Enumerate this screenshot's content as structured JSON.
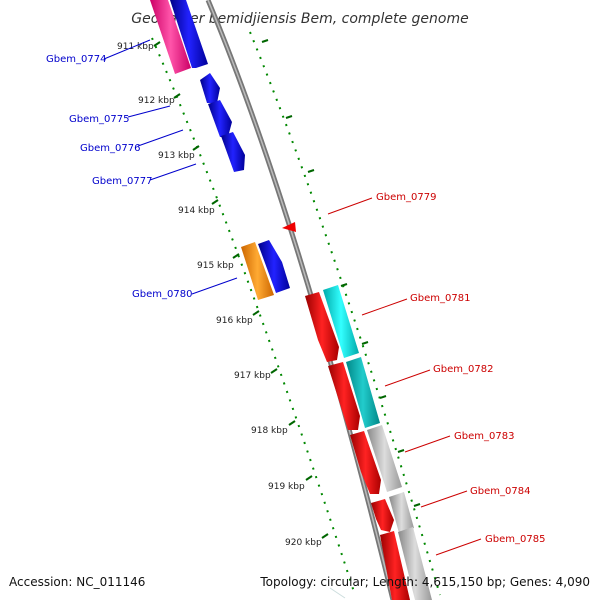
{
  "title": "Geobacter bemidjiensis Bem, complete genome",
  "footer": {
    "accession": "Accession: NC_011146",
    "topology": "Topology: circular; Length: 4,615,150 bp; Genes: 4,090"
  },
  "ticks": [
    "911 kbp",
    "912 kbp",
    "913 kbp",
    "914 kbp",
    "915 kbp",
    "916 kbp",
    "917 kbp",
    "918 kbp",
    "919 kbp",
    "920 kbp"
  ],
  "genes": [
    {
      "name": "Gbem_0774",
      "strand": "forward",
      "color": "#0000cc"
    },
    {
      "name": "Gbem_0775",
      "strand": "forward",
      "color": "#0000cc"
    },
    {
      "name": "Gbem_0776",
      "strand": "forward",
      "color": "#0000cc"
    },
    {
      "name": "Gbem_0777",
      "strand": "forward",
      "color": "#0000cc"
    },
    {
      "name": "Gbem_0779",
      "strand": "reverse",
      "color": "#cc0000"
    },
    {
      "name": "Gbem_0780",
      "strand": "forward",
      "color": "#0000cc"
    },
    {
      "name": "Gbem_0781",
      "strand": "reverse",
      "color": "#cc0000"
    },
    {
      "name": "Gbem_0782",
      "strand": "reverse",
      "color": "#cc0000"
    },
    {
      "name": "Gbem_0783",
      "strand": "reverse",
      "color": "#cc0000"
    },
    {
      "name": "Gbem_0784",
      "strand": "reverse",
      "color": "#cc0000"
    },
    {
      "name": "Gbem_0785",
      "strand": "reverse",
      "color": "#cc0000"
    }
  ],
  "colors": {
    "backbone": "#888888",
    "forward_gene": "#0000ee",
    "reverse_gene": "#ee0000",
    "cog_magenta": "#ff3399",
    "cog_orange": "#ff9900",
    "cog_cyan": "#00dddd",
    "cog_teal": "#00bbbb",
    "cog_grey": "#bbbbbb",
    "gc_dots": "#008800"
  }
}
